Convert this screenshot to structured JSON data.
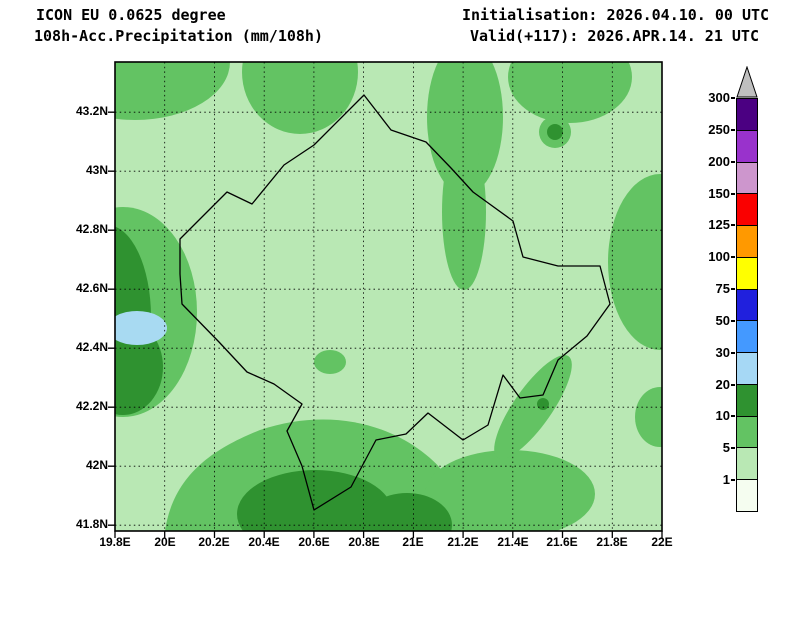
{
  "header": {
    "model": "ICON EU 0.0625 degree",
    "product": "108h-Acc.Precipitation (mm/108h)",
    "initialisation": "Initialisation: 2026.04.10. 00 UTC",
    "valid": "Valid(+117): 2026.APR.14. 21 UTC"
  },
  "axes": {
    "lat_labels": [
      "43.2N",
      "43N",
      "42.8N",
      "42.6N",
      "42.4N",
      "42.2N",
      "42N",
      "41.8N"
    ],
    "lon_labels": [
      "19.8E",
      "20E",
      "20.2E",
      "20.4E",
      "20.6E",
      "20.8E",
      "21E",
      "21.2E",
      "21.4E",
      "21.6E",
      "21.8E",
      "22E"
    ]
  },
  "legend": {
    "unit": "mm/108h",
    "arrow_color": "#bfbfbf",
    "bands": [
      {
        "label": "300",
        "color": "#4b0082"
      },
      {
        "label": "250",
        "color": "#9932cc"
      },
      {
        "label": "200",
        "color": "#cd96cd"
      },
      {
        "label": "150",
        "color": "#fa0000"
      },
      {
        "label": "125",
        "color": "#ff9900"
      },
      {
        "label": "100",
        "color": "#ffff00"
      },
      {
        "label": "75",
        "color": "#2020dd"
      },
      {
        "label": "50",
        "color": "#4499ff"
      },
      {
        "label": "30",
        "color": "#a6d8f5"
      },
      {
        "label": "20",
        "color": "#2f9230"
      },
      {
        "label": "10",
        "color": "#63c363"
      },
      {
        "label": "5",
        "color": "#b9e8b4"
      },
      {
        "label": "1",
        "color": "#f5fdf0"
      }
    ]
  },
  "map": {
    "outlined_region": "Kosovo",
    "fill_colors": {
      "band_1_5_mm": "#b9e8b4",
      "band_5_10_mm": "#63c363",
      "band_10_20_mm": "#2f9230",
      "band_20_30_mm": "#a8daf2"
    },
    "lon_range": [
      "19.8E",
      "22E"
    ],
    "lat_range": [
      "41.8N",
      "43.3N"
    ]
  }
}
